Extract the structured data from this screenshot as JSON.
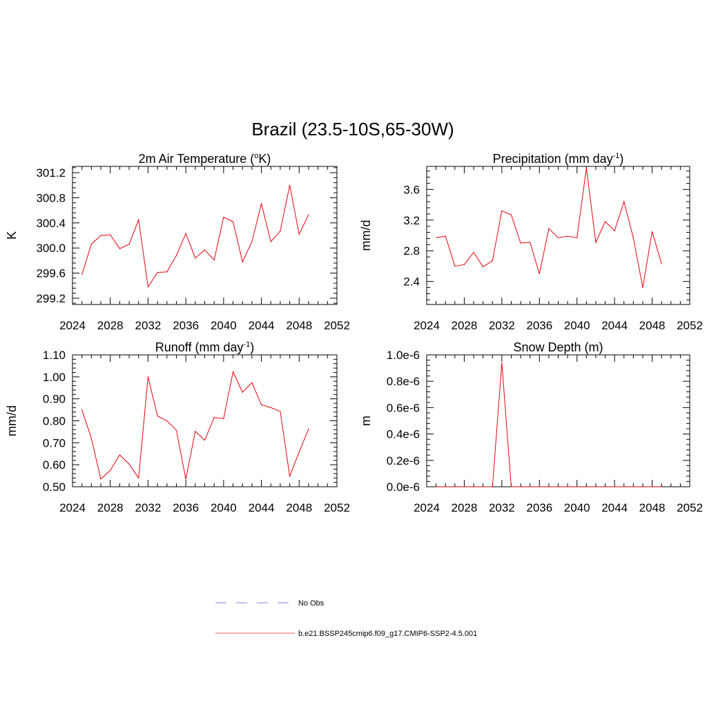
{
  "figure": {
    "title": "Brazil (23.5-10S,65-30W)"
  },
  "colors": {
    "series": "#e8000b",
    "obs": "#9999ee",
    "axis": "#000000"
  },
  "legend": {
    "items": [
      {
        "label": "No Obs",
        "color": "#9999ee",
        "dash": true
      },
      {
        "label": "b.e21.BSSP245cmip6.f09_g17.CMIP6-SSP2-4.5.001",
        "color": "#ee8080",
        "dash": false
      }
    ]
  },
  "chart_data": [
    {
      "type": "line",
      "title": "2m Air Temperature (°K)",
      "ylabel": "K",
      "xlim": [
        2024,
        2052
      ],
      "ylim": [
        299.1,
        301.3
      ],
      "xticks": [
        2024,
        2028,
        2032,
        2036,
        2040,
        2044,
        2048,
        2052
      ],
      "yticks": [
        299.2,
        299.6,
        300.0,
        300.4,
        300.8,
        301.2
      ],
      "ytick_labels": [
        "299.2",
        "299.6",
        "300.0",
        "300.4",
        "300.8",
        "301.2"
      ],
      "series": [
        {
          "x": [
            2025,
            2026,
            2027,
            2028,
            2029,
            2030,
            2031,
            2032,
            2033,
            2034,
            2035,
            2036,
            2037,
            2038,
            2039,
            2040,
            2041,
            2042,
            2043,
            2044,
            2045,
            2046,
            2047,
            2048,
            2049
          ],
          "values": [
            299.58,
            300.06,
            300.2,
            300.21,
            299.99,
            300.06,
            300.45,
            299.38,
            299.61,
            299.62,
            299.88,
            300.23,
            299.84,
            299.97,
            299.81,
            300.49,
            300.42,
            299.78,
            300.1,
            300.71,
            300.1,
            300.27,
            301.0,
            300.22,
            300.53
          ]
        }
      ]
    },
    {
      "type": "line",
      "title": "Precipitation (mm day-1)",
      "title_main": "Precipitation (mm day",
      "title_sup": "-1",
      "title_end": ")",
      "ylabel": "mm/d",
      "xlim": [
        2024,
        2052
      ],
      "ylim": [
        2.1,
        3.9
      ],
      "xticks": [
        2024,
        2028,
        2032,
        2036,
        2040,
        2044,
        2048,
        2052
      ],
      "yticks": [
        2.4,
        2.8,
        3.2,
        3.6
      ],
      "ytick_labels": [
        "2.4",
        "2.8",
        "3.2",
        "3.6"
      ],
      "series": [
        {
          "x": [
            2025,
            2026,
            2027,
            2028,
            2029,
            2030,
            2031,
            2032,
            2033,
            2034,
            2035,
            2036,
            2037,
            2038,
            2039,
            2040,
            2041,
            2042,
            2043,
            2044,
            2045,
            2046,
            2047,
            2048,
            2049
          ],
          "values": [
            2.97,
            2.99,
            2.6,
            2.62,
            2.78,
            2.59,
            2.67,
            3.32,
            3.27,
            2.9,
            2.91,
            2.5,
            3.09,
            2.97,
            2.99,
            2.97,
            3.88,
            2.91,
            3.18,
            3.06,
            3.44,
            2.97,
            2.32,
            3.05,
            2.63
          ]
        }
      ]
    },
    {
      "type": "line",
      "title": "Runoff (mm day-1)",
      "title_main": "Runoff (mm day",
      "title_sup": "-1",
      "title_end": ")",
      "ylabel": "mm/d",
      "xlim": [
        2024,
        2052
      ],
      "ylim": [
        0.5,
        1.1
      ],
      "xticks": [
        2024,
        2028,
        2032,
        2036,
        2040,
        2044,
        2048,
        2052
      ],
      "yticks": [
        0.5,
        0.6,
        0.7,
        0.8,
        0.9,
        1.0,
        1.1
      ],
      "ytick_labels": [
        "0.50",
        "0.60",
        "0.70",
        "0.80",
        "0.90",
        "1.00",
        "1.10"
      ],
      "series": [
        {
          "x": [
            2025,
            2026,
            2027,
            2028,
            2029,
            2030,
            2031,
            2032,
            2033,
            2034,
            2035,
            2036,
            2037,
            2038,
            2039,
            2040,
            2041,
            2042,
            2043,
            2044,
            2045,
            2046,
            2047,
            2048,
            2049
          ],
          "values": [
            0.85,
            0.72,
            0.535,
            0.575,
            0.645,
            0.603,
            0.54,
            1.0,
            0.822,
            0.8,
            0.757,
            0.535,
            0.752,
            0.712,
            0.815,
            0.81,
            1.023,
            0.93,
            0.973,
            0.873,
            0.86,
            0.843,
            0.548,
            0.658,
            0.763
          ]
        }
      ]
    },
    {
      "type": "line",
      "title": "Snow Depth (m)",
      "ylabel": "m",
      "xlim": [
        2024,
        2052
      ],
      "ylim": [
        0,
        1e-06
      ],
      "xticks": [
        2024,
        2028,
        2032,
        2036,
        2040,
        2044,
        2048,
        2052
      ],
      "yticks": [
        0,
        2e-07,
        4e-07,
        6e-07,
        8e-07,
        1e-06
      ],
      "ytick_labels": [
        "0.0e-6",
        "0.2e-6",
        "0.4e-6",
        "0.6e-6",
        "0.8e-6",
        "1.0e-6"
      ],
      "series": [
        {
          "x": [
            2025,
            2026,
            2027,
            2028,
            2029,
            2030,
            2031,
            2032,
            2033,
            2034,
            2035,
            2036,
            2037,
            2038,
            2039,
            2040,
            2041,
            2042,
            2043,
            2044,
            2045,
            2046,
            2047,
            2048,
            2049
          ],
          "values": [
            0,
            0,
            0,
            0,
            0,
            0,
            0,
            9.4e-07,
            0,
            0,
            0,
            0,
            0,
            0,
            0,
            0,
            0,
            0,
            0,
            0,
            0,
            0,
            0,
            0,
            0
          ]
        }
      ]
    }
  ]
}
